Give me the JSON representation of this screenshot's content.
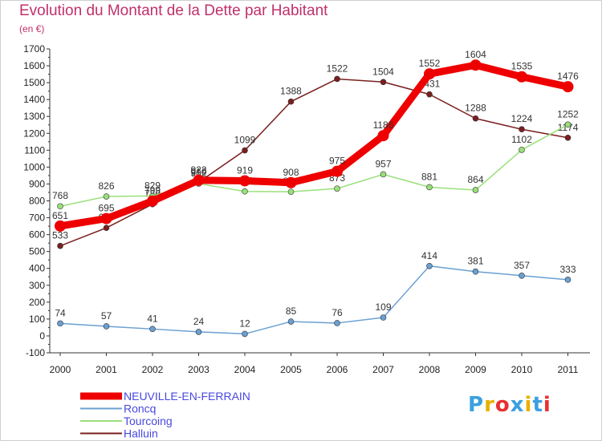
{
  "chart_data": {
    "type": "line",
    "title": "Evolution du Montant de la Dette par Habitant",
    "subtitle": "(en €)",
    "x": [
      "2000",
      "2001",
      "2002",
      "2003",
      "2004",
      "2005",
      "2006",
      "2007",
      "2008",
      "2009",
      "2010",
      "2011"
    ],
    "yticks": [
      -100,
      0,
      100,
      200,
      300,
      400,
      500,
      600,
      700,
      800,
      900,
      1000,
      1100,
      1200,
      1300,
      1400,
      1500,
      1600,
      1700
    ],
    "ylim": [
      -100,
      1700
    ],
    "grid": false,
    "legend_position": "bottom-left",
    "series": [
      {
        "name": "Halluin",
        "color": "#7a1f1f",
        "values": [
          533,
          640,
          780,
          910,
          1099,
          1388,
          1522,
          1504,
          1431,
          1288,
          1224,
          1174
        ],
        "labels": [
          "533",
          "640",
          "780",
          "910",
          "1099",
          "1388",
          "1522",
          "1504",
          "1431",
          "1288",
          "1224",
          "1174"
        ]
      },
      {
        "name": "Tourcoing",
        "color": "#99e07a",
        "values": [
          768,
          826,
          829,
          902,
          856,
          854,
          873,
          957,
          881,
          864,
          1102,
          1252
        ],
        "labels": [
          "768",
          "826",
          "829",
          "902",
          "856",
          "854",
          "873",
          "957",
          "881",
          "864",
          "1102",
          "1252"
        ]
      },
      {
        "name": "Roncq",
        "color": "#6aa0d2",
        "values": [
          74,
          57,
          41,
          24,
          12,
          85,
          76,
          109,
          414,
          381,
          357,
          333
        ],
        "labels": [
          "74",
          "57",
          "41",
          "24",
          "12",
          "85",
          "76",
          "109",
          "414",
          "381",
          "357",
          "333"
        ]
      },
      {
        "name": "NEUVILLE-EN-FERRAIN",
        "color": "#ee0000",
        "values": [
          651,
          695,
          799,
          922,
          919,
          908,
          975,
          1186,
          1552,
          1604,
          1535,
          1476
        ],
        "labels": [
          "651",
          "695",
          "799",
          "922",
          "919",
          "908",
          "975",
          "1186",
          "1552",
          "1604",
          "1535",
          "1476"
        ]
      }
    ],
    "legend": [
      "NEUVILLE-EN-FERRAIN",
      "Roncq",
      "Tourcoing",
      "Halluin"
    ]
  },
  "logo": {
    "letters": [
      "P",
      "r",
      "o",
      "x",
      "i",
      "t",
      "i"
    ],
    "colors": [
      "#3aa0e0",
      "#e8b000",
      "#e83030",
      "#3aa0e0",
      "#e8b000",
      "#3aa0e0",
      "#e83030"
    ]
  }
}
